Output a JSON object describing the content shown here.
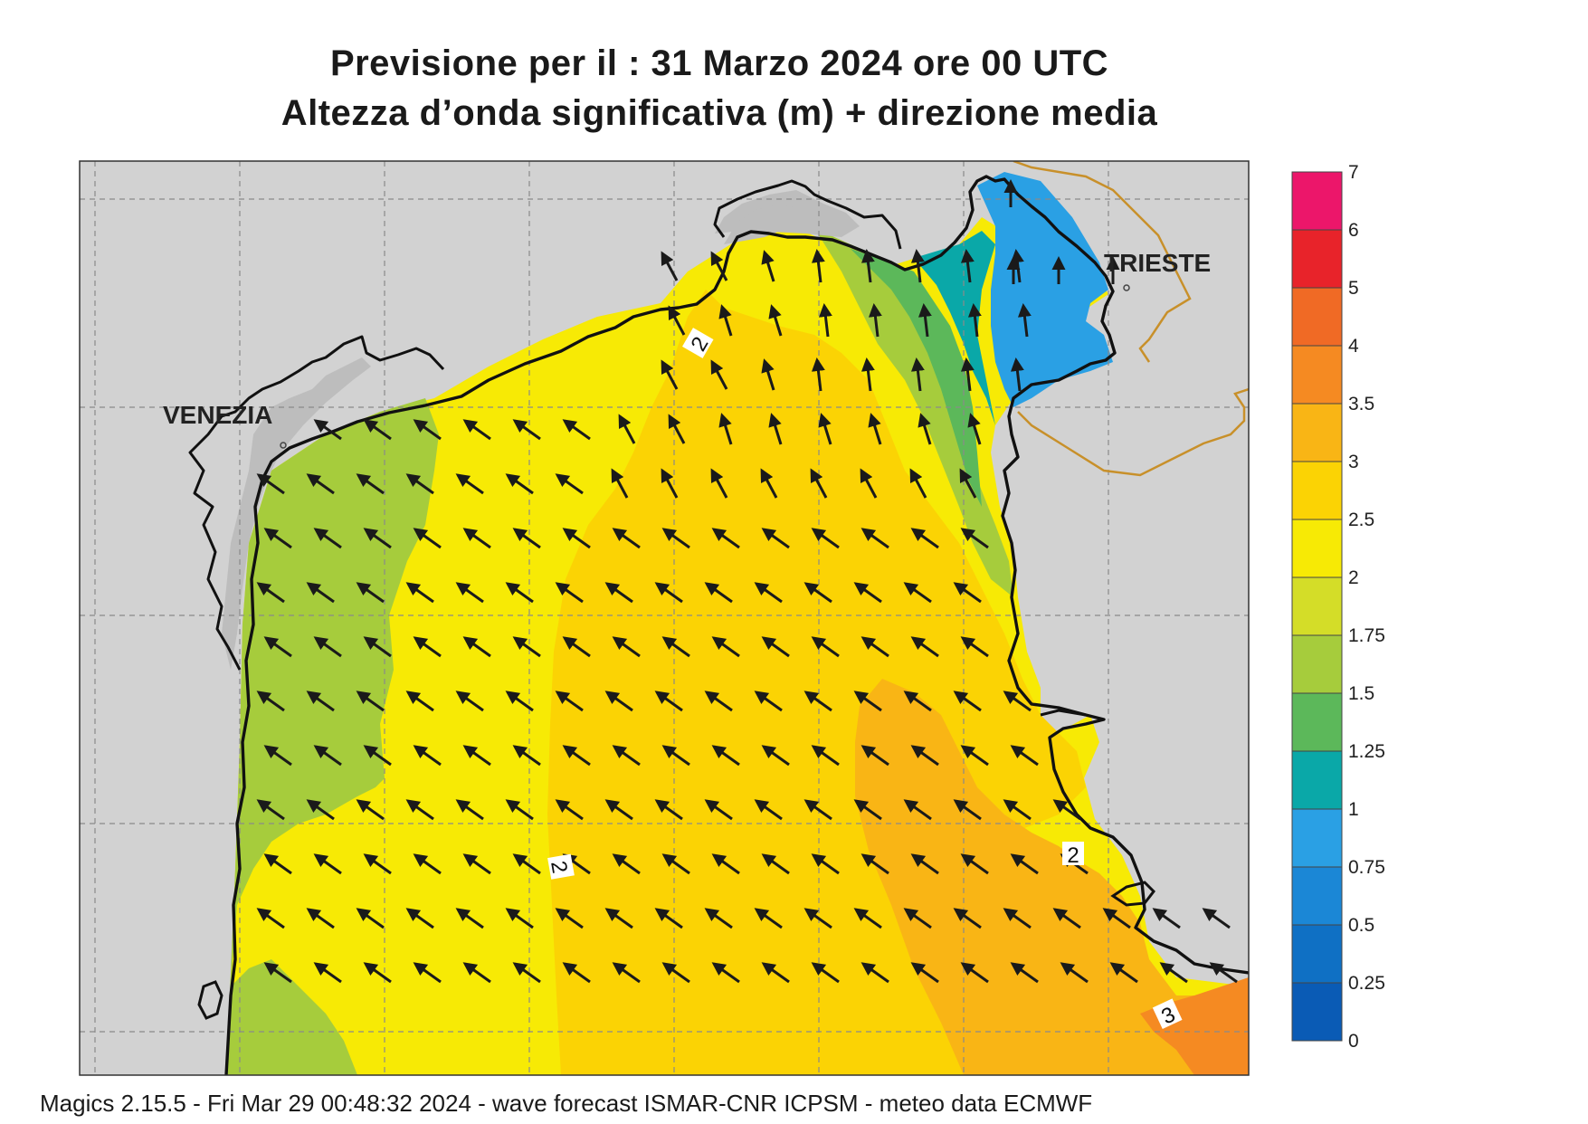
{
  "title": {
    "line1": "Previsione per il  :  31   Marzo   2024   ore 00 UTC",
    "line2": "Altezza d’onda significativa (m) + direzione media"
  },
  "cities": [
    {
      "name": "VENEZIA"
    },
    {
      "name": "TRIESTE"
    }
  ],
  "contour_labels": [
    "2",
    "2",
    "2",
    "3"
  ],
  "legend": {
    "levels": [
      "0",
      "0.25",
      "0.5",
      "0.75",
      "1",
      "1.25",
      "1.5",
      "1.75",
      "2",
      "2.5",
      "3",
      "3.5",
      "4",
      "5",
      "6",
      "7"
    ],
    "colors": [
      "#0a5bb5",
      "#0f70c4",
      "#1b87d6",
      "#2aa0e4",
      "#0aa8a8",
      "#5cb85a",
      "#a6cc3c",
      "#d4dd28",
      "#f7ea05",
      "#fbd304",
      "#f9b515",
      "#f58a22",
      "#f06a25",
      "#e8232a",
      "#ec166a"
    ]
  },
  "colors": {
    "land": "#d2d2d2",
    "mask": "#bdbdbd",
    "coast": "#111111",
    "border": "#c8902a",
    "arrow": "#1a1a1a",
    "grid": "#8a8a8a"
  },
  "footer": "Magics 2.15.5 - Fri Mar 29 00:48:32 2024 - wave forecast  ISMAR-CNR  ICPSM - meteo data    ECMWF",
  "wave_direction": "toward NW"
}
